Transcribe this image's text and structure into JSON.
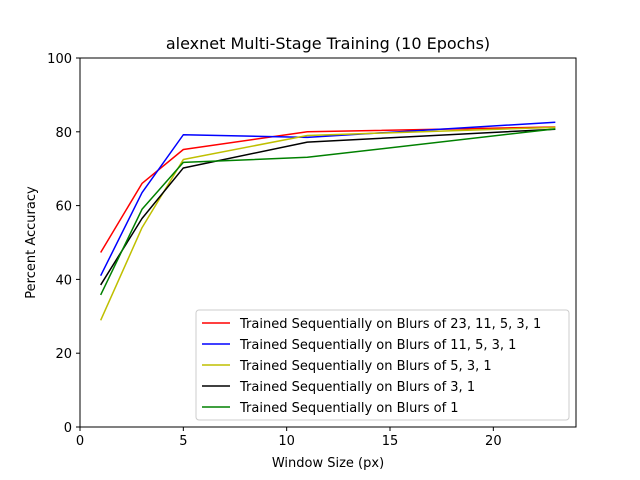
{
  "chart_data": {
    "type": "line",
    "title": "alexnet Multi-Stage Training (10 Epochs)",
    "xlabel": "Window Size (px)",
    "ylabel": "Percent Accuracy",
    "xlim": [
      0,
      24
    ],
    "ylim": [
      0,
      100
    ],
    "xticks": [
      0,
      5,
      10,
      15,
      20
    ],
    "yticks": [
      0,
      20,
      40,
      60,
      80,
      100
    ],
    "grid": false,
    "legend_position": "lower-right",
    "x": [
      1,
      3,
      5,
      11,
      23
    ],
    "series": [
      {
        "name": "Trained Sequentially on Blurs of 23, 11, 5, 3, 1",
        "color": "#ff0000",
        "values": [
          47.3,
          66.0,
          75.2,
          80.0,
          81.3
        ]
      },
      {
        "name": "Trained Sequentially on Blurs of 11, 5, 3, 1",
        "color": "#0000ff",
        "values": [
          41.0,
          63.5,
          79.2,
          78.5,
          82.6
        ]
      },
      {
        "name": "Trained Sequentially on Blurs of 5, 3, 1",
        "color": "#bfbf00",
        "values": [
          28.9,
          54.0,
          72.5,
          79.0,
          81.2
        ]
      },
      {
        "name": "Trained Sequentially on Blurs of 3, 1",
        "color": "#000000",
        "values": [
          38.5,
          56.5,
          70.2,
          77.2,
          80.7
        ]
      },
      {
        "name": "Trained Sequentially on Blurs of 1",
        "color": "#008000",
        "values": [
          35.8,
          59.0,
          71.7,
          73.1,
          80.8
        ]
      }
    ]
  }
}
